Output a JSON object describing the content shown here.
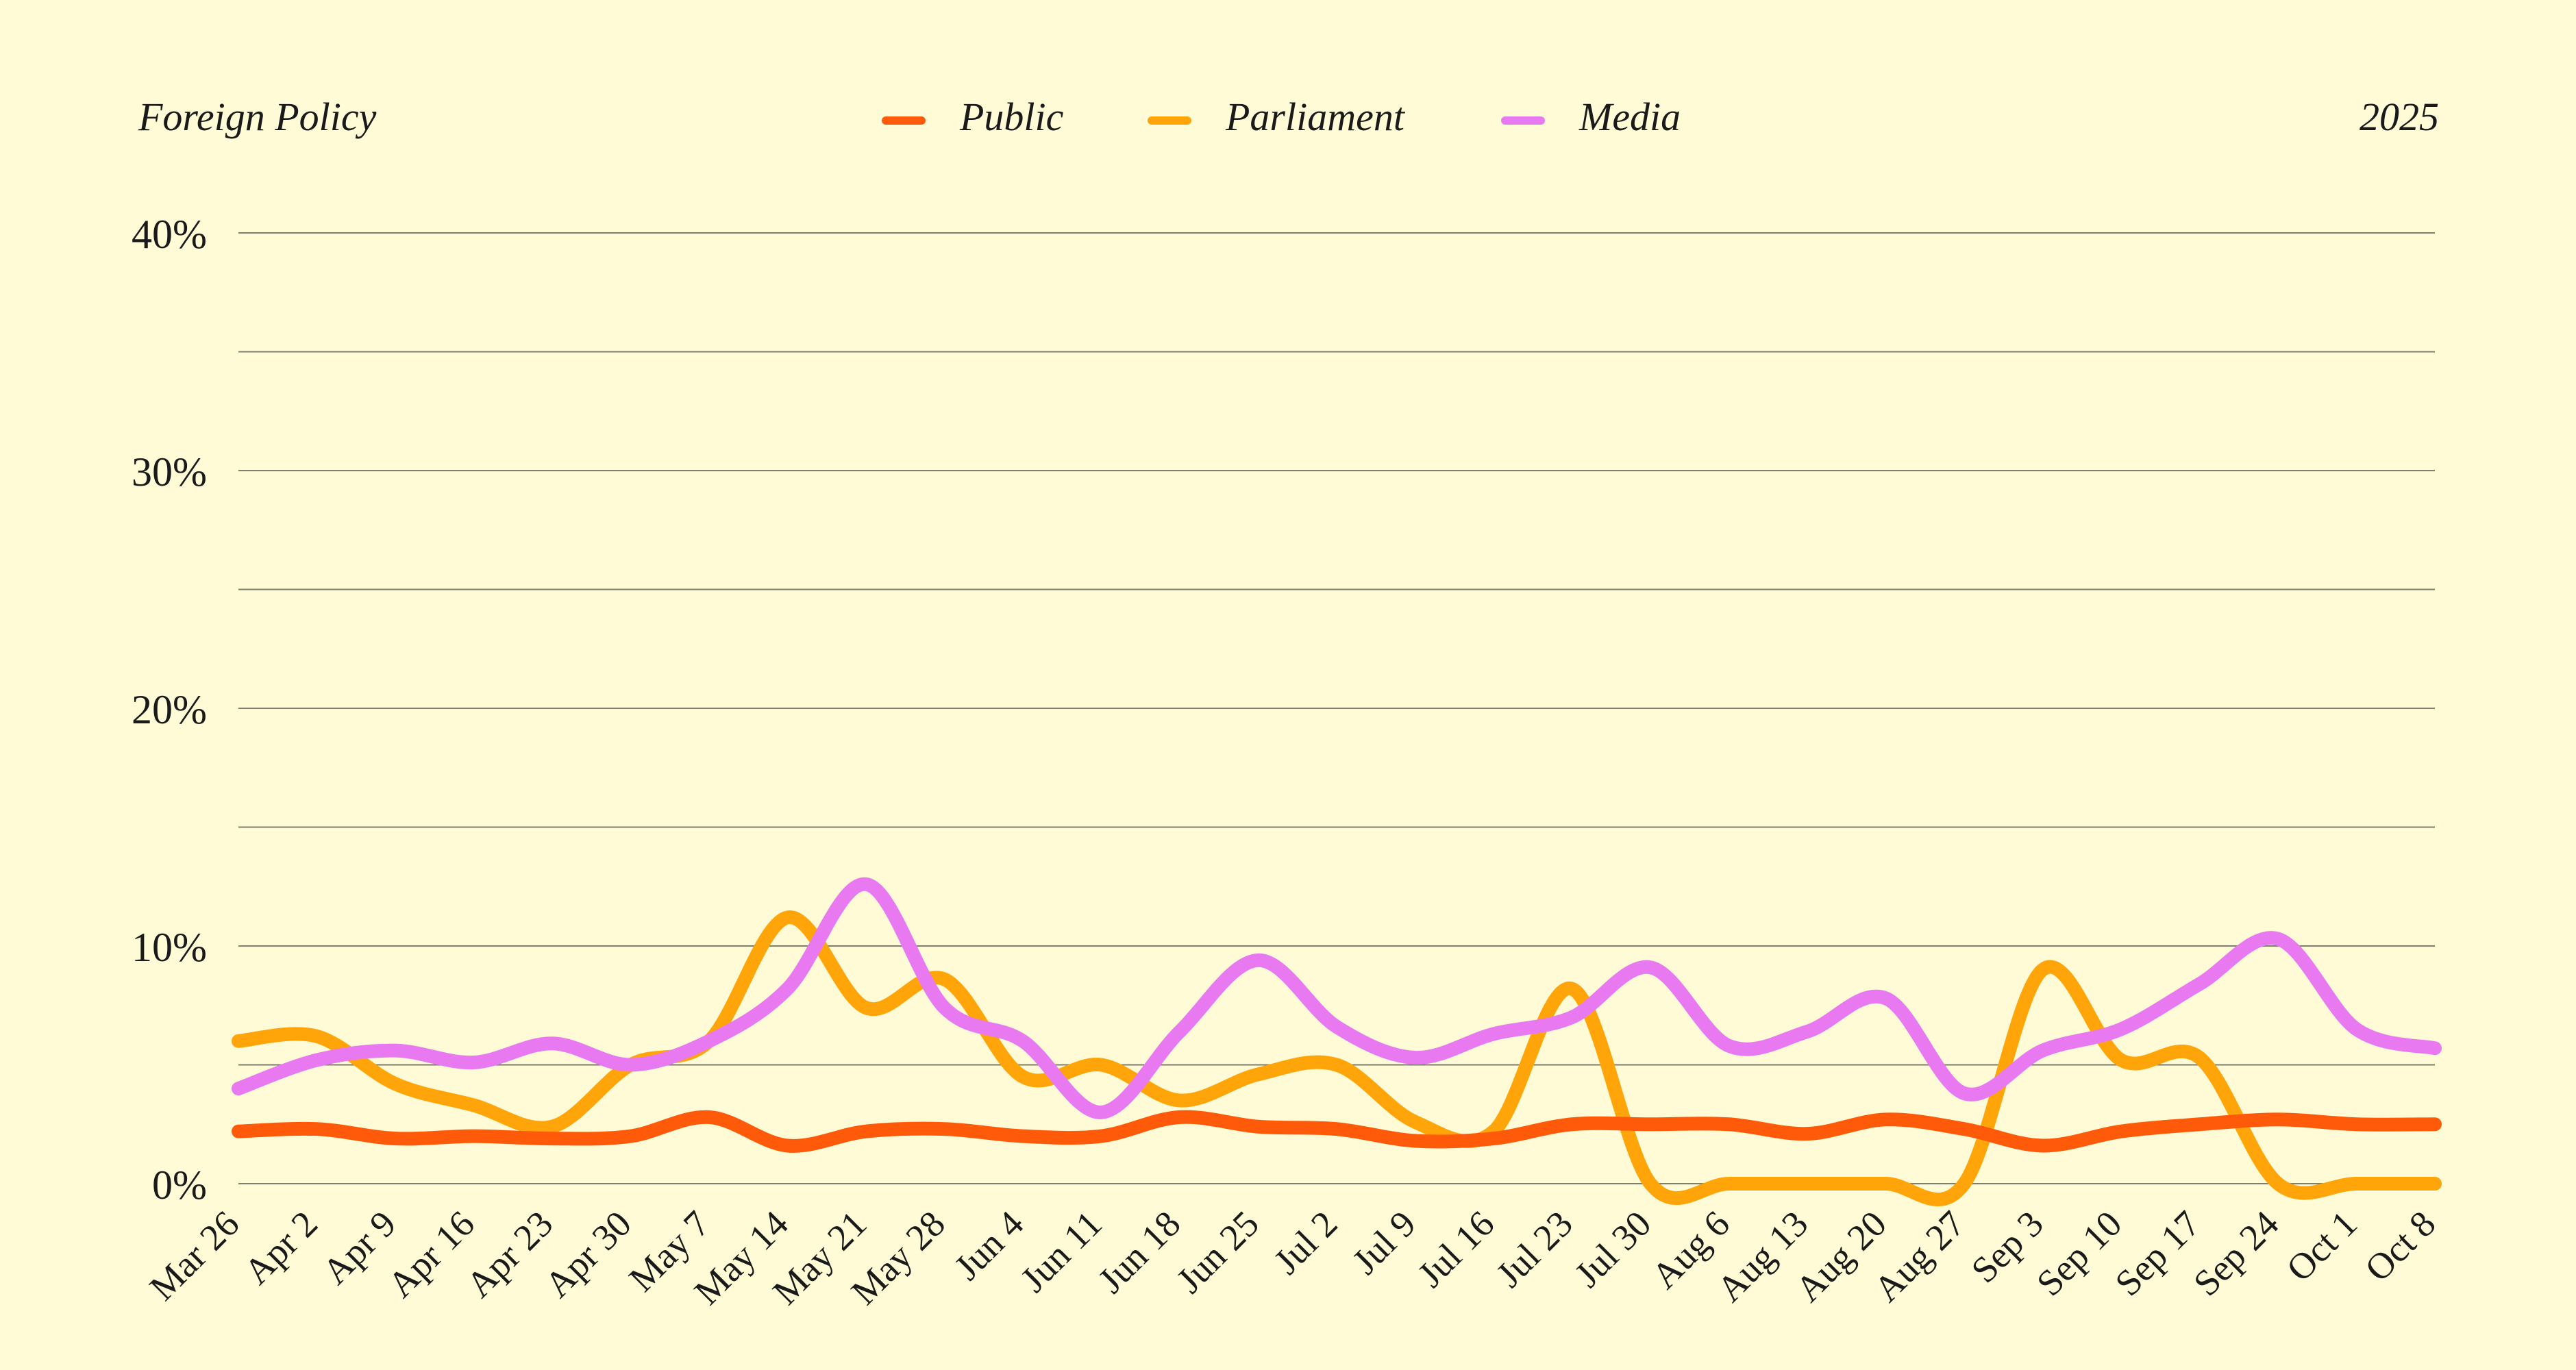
{
  "header": {
    "left_title": "Foreign Policy",
    "right_label": "2025"
  },
  "colors": {
    "background": "#FEFBD6",
    "gridline": "#7f7f70",
    "text": "#1a1a1a",
    "public": "#FF5A0A",
    "parliament": "#FFA50A",
    "media": "#E879F0"
  },
  "chart_data": {
    "type": "line",
    "title": "Foreign Policy",
    "ylim": [
      0,
      40
    ],
    "yticks": [
      0,
      10,
      20,
      30,
      40
    ],
    "ytick_labels": [
      "0%",
      "10%",
      "20%",
      "30%",
      "40%"
    ],
    "grid": true,
    "legend_position": "top-center",
    "categories": [
      "Mar 26",
      "Apr 2",
      "Apr 9",
      "Apr 16",
      "Apr 23",
      "Apr 30",
      "May 7",
      "May 14",
      "May 21",
      "May 28",
      "Jun 4",
      "Jun 11",
      "Jun 18",
      "Jun 25",
      "Jul 2",
      "Jul 9",
      "Jul 16",
      "Jul 23",
      "Jul 30",
      "Aug 6",
      "Aug 13",
      "Aug 20",
      "Aug 27",
      "Sep 3",
      "Sep 10",
      "Sep 17",
      "Sep 24",
      "Oct 1",
      "Oct 8"
    ],
    "series": [
      {
        "name": "Public",
        "color": "#FF5A0A",
        "values": [
          2.2,
          2.3,
          1.9,
          2.0,
          1.9,
          2.0,
          2.8,
          1.6,
          2.2,
          2.3,
          2.0,
          2.0,
          2.8,
          2.4,
          2.3,
          1.8,
          1.9,
          2.5,
          2.5,
          2.5,
          2.1,
          2.7,
          2.3,
          1.6,
          2.2,
          2.5,
          2.7,
          2.5,
          2.5
        ]
      },
      {
        "name": "Parliament",
        "color": "#FFA50A",
        "values": [
          6.0,
          6.2,
          4.2,
          3.3,
          2.4,
          5.0,
          6.0,
          11.2,
          7.4,
          8.6,
          4.5,
          5.0,
          3.5,
          4.6,
          5.0,
          2.6,
          2.2,
          8.2,
          0.0,
          0.0,
          0.0,
          0.0,
          0.0,
          9.0,
          5.2,
          5.3,
          0.0,
          0.0,
          0.0
        ]
      },
      {
        "name": "Media",
        "color": "#E879F0",
        "values": [
          4.0,
          5.2,
          5.6,
          5.1,
          5.9,
          5.0,
          6.0,
          8.2,
          12.6,
          7.4,
          6.0,
          3.0,
          6.4,
          9.4,
          6.6,
          5.3,
          6.3,
          7.0,
          9.1,
          5.8,
          6.4,
          7.8,
          3.8,
          5.6,
          6.5,
          8.4,
          10.3,
          6.5,
          5.7
        ]
      }
    ]
  }
}
